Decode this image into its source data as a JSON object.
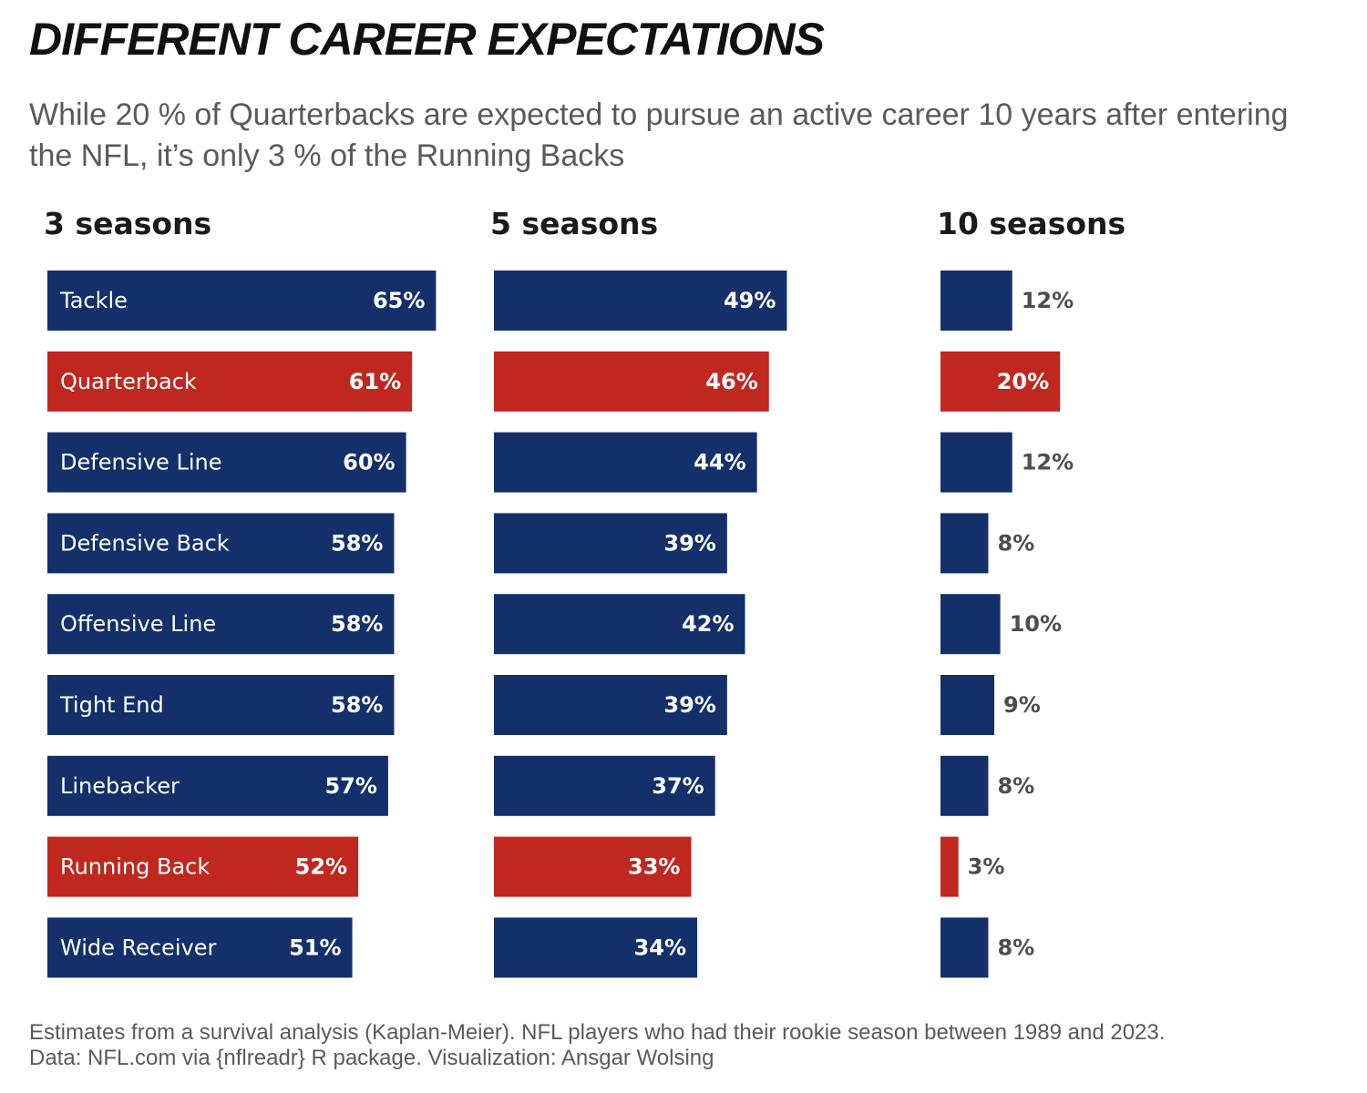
{
  "title": "DIFFERENT CAREER EXPECTATIONS",
  "subtitle": "While 20 % of Quarterbacks are expected to pursue an active career 10 years after entering the NFL, it’s only 3 % of the Running Backs",
  "caption": {
    "line1": "Estimates from a survival analysis (Kaplan-Meier). NFL players who had their rookie season between 1989 and 2023.",
    "line2": "Data: NFL.com via {nflreadr} R package. Visualization: Ansgar Wolsing"
  },
  "colors": {
    "default_bar": "#14306a",
    "highlight_bar": "#c0281f",
    "inside_label": "#ffffff",
    "outside_label": "#4d4d4d",
    "panel_title": "#1a1a1a"
  },
  "chart_data": [
    {
      "type": "bar",
      "orientation": "horizontal",
      "title": "3 seasons",
      "categories": [
        "Tackle",
        "Quarterback",
        "Defensive Line",
        "Defensive Back",
        "Offensive Line",
        "Tight End",
        "Linebacker",
        "Running Back",
        "Wide Receiver"
      ],
      "values": [
        65,
        61,
        60,
        58,
        58,
        58,
        57,
        52,
        51
      ],
      "value_labels": [
        "65%",
        "61%",
        "60%",
        "58%",
        "58%",
        "58%",
        "57%",
        "52%",
        "51%"
      ],
      "highlight": [
        "Quarterback",
        "Running Back"
      ],
      "unit": "%",
      "show_category_labels": true
    },
    {
      "type": "bar",
      "orientation": "horizontal",
      "title": "5 seasons",
      "categories": [
        "Tackle",
        "Quarterback",
        "Defensive Line",
        "Defensive Back",
        "Offensive Line",
        "Tight End",
        "Linebacker",
        "Running Back",
        "Wide Receiver"
      ],
      "values": [
        49,
        46,
        44,
        39,
        42,
        39,
        37,
        33,
        34
      ],
      "value_labels": [
        "49%",
        "46%",
        "44%",
        "39%",
        "42%",
        "39%",
        "37%",
        "33%",
        "34%"
      ],
      "highlight": [
        "Quarterback",
        "Running Back"
      ],
      "unit": "%",
      "show_category_labels": false
    },
    {
      "type": "bar",
      "orientation": "horizontal",
      "title": "10 seasons",
      "categories": [
        "Tackle",
        "Quarterback",
        "Defensive Line",
        "Defensive Back",
        "Offensive Line",
        "Tight End",
        "Linebacker",
        "Running Back",
        "Wide Receiver"
      ],
      "values": [
        12,
        20,
        12,
        8,
        10,
        9,
        8,
        3,
        8
      ],
      "value_labels": [
        "12%",
        "20%",
        "12%",
        "8%",
        "10%",
        "9%",
        "8%",
        "3%",
        "8%"
      ],
      "highlight": [
        "Quarterback",
        "Running Back"
      ],
      "unit": "%",
      "show_category_labels": false
    }
  ]
}
